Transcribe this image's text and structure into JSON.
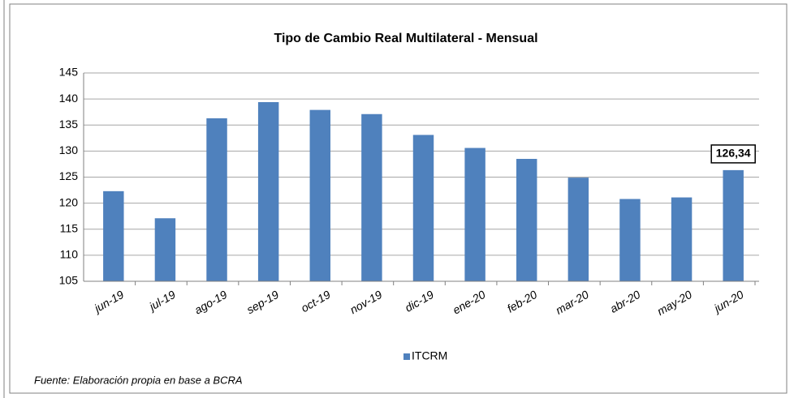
{
  "chart_data": {
    "type": "bar",
    "title": "Tipo de Cambio Real Multilateral  - Mensual",
    "categories": [
      "jun-19",
      "jul-19",
      "ago-19",
      "sep-19",
      "oct-19",
      "nov-19",
      "dic-19",
      "ene-20",
      "feb-20",
      "mar-20",
      "abr-20",
      "may-20",
      "jun-20"
    ],
    "series": [
      {
        "name": "ITCRM",
        "color": "#4f81bd",
        "values": [
          122.3,
          117.1,
          136.3,
          139.4,
          137.9,
          137.1,
          133.1,
          130.6,
          128.5,
          124.9,
          120.8,
          121.1,
          126.34
        ],
        "value_labels": [
          null,
          null,
          null,
          null,
          null,
          null,
          null,
          null,
          null,
          null,
          null,
          null,
          "126,34"
        ]
      }
    ],
    "ylim": [
      105,
      145
    ],
    "yticks": [
      105,
      110,
      115,
      120,
      125,
      130,
      135,
      140,
      145
    ],
    "grid": true,
    "legend": "bottom",
    "source": "Fuente: Elaboración propia en base a BCRA"
  }
}
